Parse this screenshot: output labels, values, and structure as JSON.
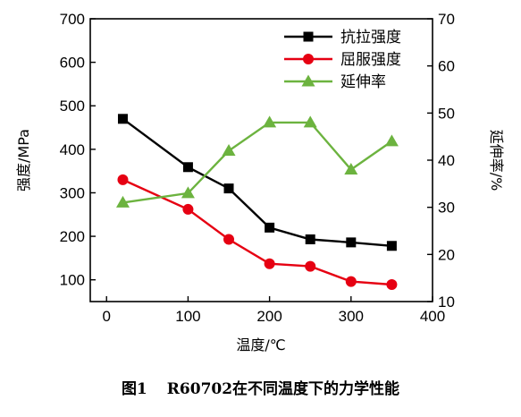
{
  "chart_data": {
    "type": "line",
    "title": "",
    "xlabel": "温度/℃",
    "ylabel": "强度/MPa",
    "ylabel_right": "延伸率/%",
    "xlim": [
      -20,
      400
    ],
    "ylim": [
      50,
      700
    ],
    "ylim_right": [
      10,
      70
    ],
    "x_ticks": [
      0,
      100,
      200,
      300,
      400
    ],
    "y_ticks": [
      100,
      200,
      300,
      400,
      500,
      600,
      700
    ],
    "y_ticks_right": [
      10,
      20,
      30,
      40,
      50,
      60,
      70
    ],
    "grid": false,
    "legend_position": "top-right",
    "series": [
      {
        "name": "抗拉强度",
        "axis": "left",
        "marker": "square",
        "color": "#000000",
        "x": [
          20,
          100,
          150,
          200,
          250,
          300,
          350
        ],
        "y": [
          470,
          359,
          310,
          220,
          193,
          186,
          178
        ]
      },
      {
        "name": "屈服强度",
        "axis": "left",
        "marker": "circle",
        "color": "#e60012",
        "x": [
          20,
          100,
          150,
          200,
          250,
          300,
          350
        ],
        "y": [
          330,
          262,
          193,
          137,
          131,
          96,
          89
        ]
      },
      {
        "name": "延伸率",
        "axis": "right",
        "marker": "triangle",
        "color": "#6cb33f",
        "x": [
          20,
          100,
          150,
          200,
          250,
          300,
          350
        ],
        "y": [
          31,
          33,
          42,
          48,
          48,
          38,
          44
        ]
      }
    ]
  },
  "caption": {
    "figure_label": "图1",
    "text": "R60702在不同温度下的力学性能"
  }
}
